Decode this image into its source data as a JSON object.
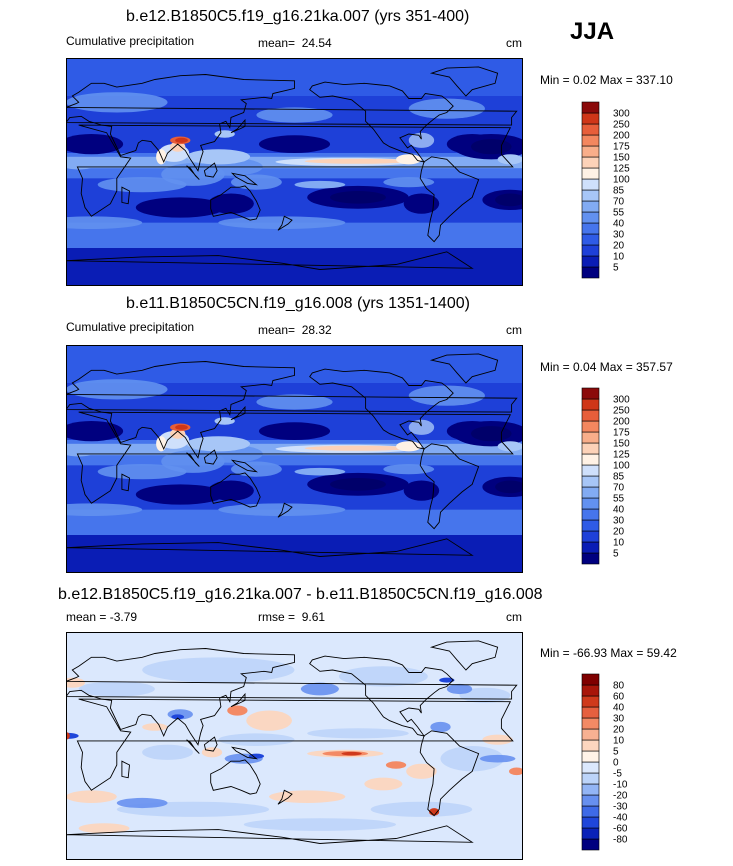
{
  "season": "JJA",
  "panels": [
    {
      "title": "b.e12.B1850C5.f19_g16.21ka.007 (yrs 351-400)",
      "left_label": "Cumulative precipitation",
      "stat_label": "mean=",
      "stat_value": "24.54",
      "units": "cm",
      "minmax": "Min =   0.02 Max = 337.10",
      "colorbar_levels": [
        "5",
        "10",
        "20",
        "30",
        "40",
        "55",
        "70",
        "85",
        "100",
        "125",
        "150",
        "175",
        "200",
        "250",
        "300"
      ],
      "colorbar_colors": [
        "#00007f",
        "#0a1db5",
        "#1e40d8",
        "#2f5be6",
        "#4675ec",
        "#6291f0",
        "#82abf3",
        "#a7c6f7",
        "#cfe0fb",
        "#fff2e5",
        "#fcd2b8",
        "#f8ae8a",
        "#f3875f",
        "#e75e3a",
        "#cf3618",
        "#8b0a0a"
      ],
      "map_style": "precip"
    },
    {
      "title": "b.e11.B1850C5CN.f19_g16.008 (yrs 1351-1400)",
      "left_label": "Cumulative precipitation",
      "stat_label": "mean=",
      "stat_value": "28.32",
      "units": "cm",
      "minmax": "Min =   0.04 Max = 357.57",
      "colorbar_levels": [
        "5",
        "10",
        "20",
        "30",
        "40",
        "55",
        "70",
        "85",
        "100",
        "125",
        "150",
        "175",
        "200",
        "250",
        "300"
      ],
      "colorbar_colors": [
        "#00007f",
        "#0a1db5",
        "#1e40d8",
        "#2f5be6",
        "#4675ec",
        "#6291f0",
        "#82abf3",
        "#a7c6f7",
        "#cfe0fb",
        "#fff2e5",
        "#fcd2b8",
        "#f8ae8a",
        "#f3875f",
        "#e75e3a",
        "#cf3618",
        "#8b0a0a"
      ],
      "map_style": "precip"
    },
    {
      "title": "b.e12.B1850C5.f19_g16.21ka.007 - b.e11.B1850C5CN.f19_g16.008",
      "left_label": "mean =  -3.79",
      "stat_label": "rmse =",
      "stat_value": "9.61",
      "units": "cm",
      "minmax": "Min = -66.93 Max =  59.42",
      "colorbar_levels": [
        "-80",
        "-60",
        "-40",
        "-30",
        "-20",
        "-10",
        "-5",
        "0",
        "5",
        "10",
        "20",
        "30",
        "40",
        "60",
        "80"
      ],
      "colorbar_colors": [
        "#00007f",
        "#0a22b8",
        "#1f46da",
        "#3e6ae7",
        "#6790ef",
        "#93b5f5",
        "#bcd4fa",
        "#dbe8fd",
        "#fff3e8",
        "#fcd6bf",
        "#f8b192",
        "#f38a65",
        "#e6603f",
        "#cf3a1c",
        "#a8160a",
        "#7f0000"
      ],
      "map_style": "diff"
    }
  ],
  "chart_data": [
    {
      "type": "heatmap",
      "title": "b.e12.B1850C5.f19_g16.21ka.007 (yrs 351-400)",
      "variable": "Cumulative precipitation",
      "units": "cm",
      "season": "JJA",
      "mean": 24.54,
      "min": 0.02,
      "max": 337.1,
      "contour_levels": [
        5,
        10,
        20,
        30,
        40,
        55,
        70,
        85,
        100,
        125,
        150,
        175,
        200,
        250,
        300
      ]
    },
    {
      "type": "heatmap",
      "title": "b.e11.B1850C5CN.f19_g16.008 (yrs 1351-1400)",
      "variable": "Cumulative precipitation",
      "units": "cm",
      "season": "JJA",
      "mean": 28.32,
      "min": 0.04,
      "max": 357.57,
      "contour_levels": [
        5,
        10,
        20,
        30,
        40,
        55,
        70,
        85,
        100,
        125,
        150,
        175,
        200,
        250,
        300
      ]
    },
    {
      "type": "heatmap",
      "title": "b.e12.B1850C5.f19_g16.21ka.007 - b.e11.B1850C5CN.f19_g16.008",
      "units": "cm",
      "season": "JJA",
      "mean": -3.79,
      "rmse": 9.61,
      "min": -66.93,
      "max": 59.42,
      "contour_levels": [
        -80,
        -60,
        -40,
        -30,
        -20,
        -10,
        -5,
        0,
        5,
        10,
        20,
        30,
        40,
        60,
        80
      ]
    }
  ]
}
